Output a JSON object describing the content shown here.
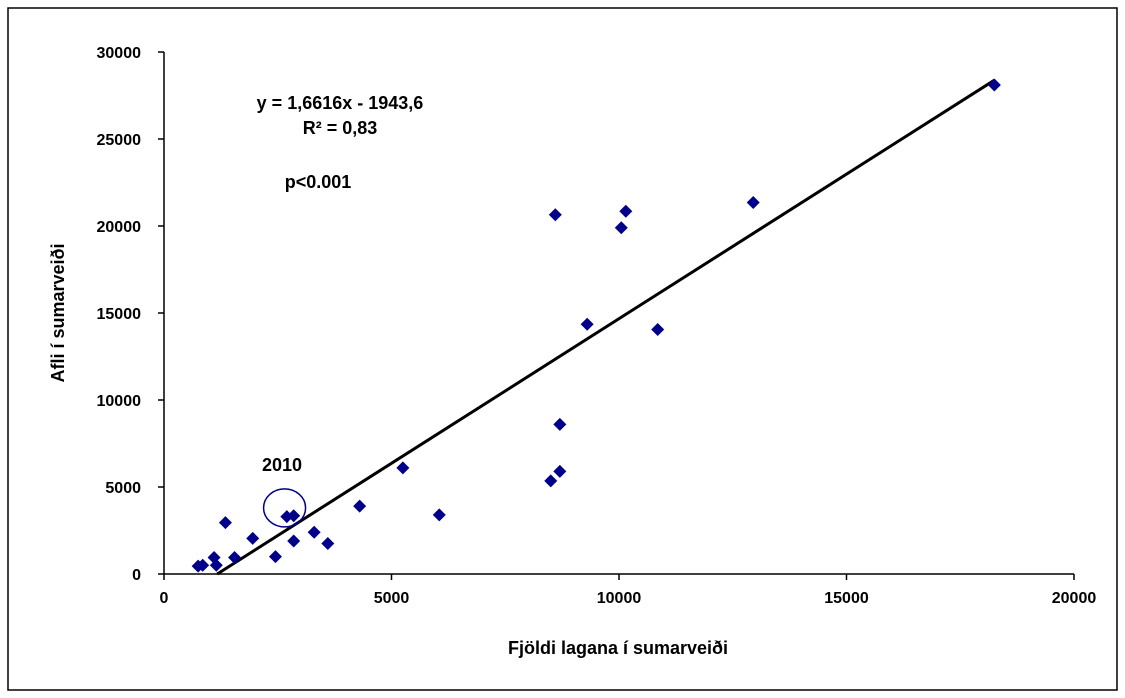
{
  "chart_data": {
    "type": "scatter",
    "title": "",
    "xlabel": "Fjöldi lagana í sumarveiði",
    "ylabel": "Afli í sumarveiði",
    "xlim": [
      0,
      20000
    ],
    "ylim": [
      0,
      30000
    ],
    "x_ticks": [
      0,
      5000,
      10000,
      15000,
      20000
    ],
    "y_ticks": [
      0,
      5000,
      10000,
      15000,
      20000,
      25000,
      30000
    ],
    "x_tick_labels": [
      "0",
      "5000",
      "10000",
      "15000",
      "20000"
    ],
    "y_tick_labels": [
      "0",
      "5000",
      "10000",
      "15000",
      "20000",
      "25000",
      "30000"
    ],
    "grid": false,
    "legend": "none",
    "marker_color": "#00008B",
    "line_color": "#000000",
    "points": [
      {
        "x": 750,
        "y": 450
      },
      {
        "x": 850,
        "y": 500
      },
      {
        "x": 1100,
        "y": 950
      },
      {
        "x": 1150,
        "y": 500
      },
      {
        "x": 1350,
        "y": 2950
      },
      {
        "x": 1550,
        "y": 950
      },
      {
        "x": 1950,
        "y": 2050
      },
      {
        "x": 2450,
        "y": 1000
      },
      {
        "x": 2700,
        "y": 3300
      },
      {
        "x": 2850,
        "y": 3350
      },
      {
        "x": 2850,
        "y": 1900
      },
      {
        "x": 3300,
        "y": 2400
      },
      {
        "x": 3600,
        "y": 1750
      },
      {
        "x": 4300,
        "y": 3900
      },
      {
        "x": 5250,
        "y": 6100
      },
      {
        "x": 6050,
        "y": 3400
      },
      {
        "x": 8500,
        "y": 5350
      },
      {
        "x": 8600,
        "y": 20650
      },
      {
        "x": 8700,
        "y": 8600
      },
      {
        "x": 8700,
        "y": 5900
      },
      {
        "x": 9300,
        "y": 14350
      },
      {
        "x": 10050,
        "y": 19900
      },
      {
        "x": 10150,
        "y": 20850
      },
      {
        "x": 10850,
        "y": 14050
      },
      {
        "x": 12950,
        "y": 21350
      },
      {
        "x": 18250,
        "y": 28100
      }
    ],
    "trendline": {
      "slope": 1.6616,
      "intercept": -1943.6,
      "x_range": [
        1170,
        18250
      ]
    },
    "annotations": {
      "equation": "y = 1,6616x  - 1943,6",
      "r_squared": "R² = 0,83",
      "p_value": "p<0.001",
      "highlight_label": "2010",
      "highlight_center": {
        "x": 2650,
        "y": 3800
      }
    }
  }
}
